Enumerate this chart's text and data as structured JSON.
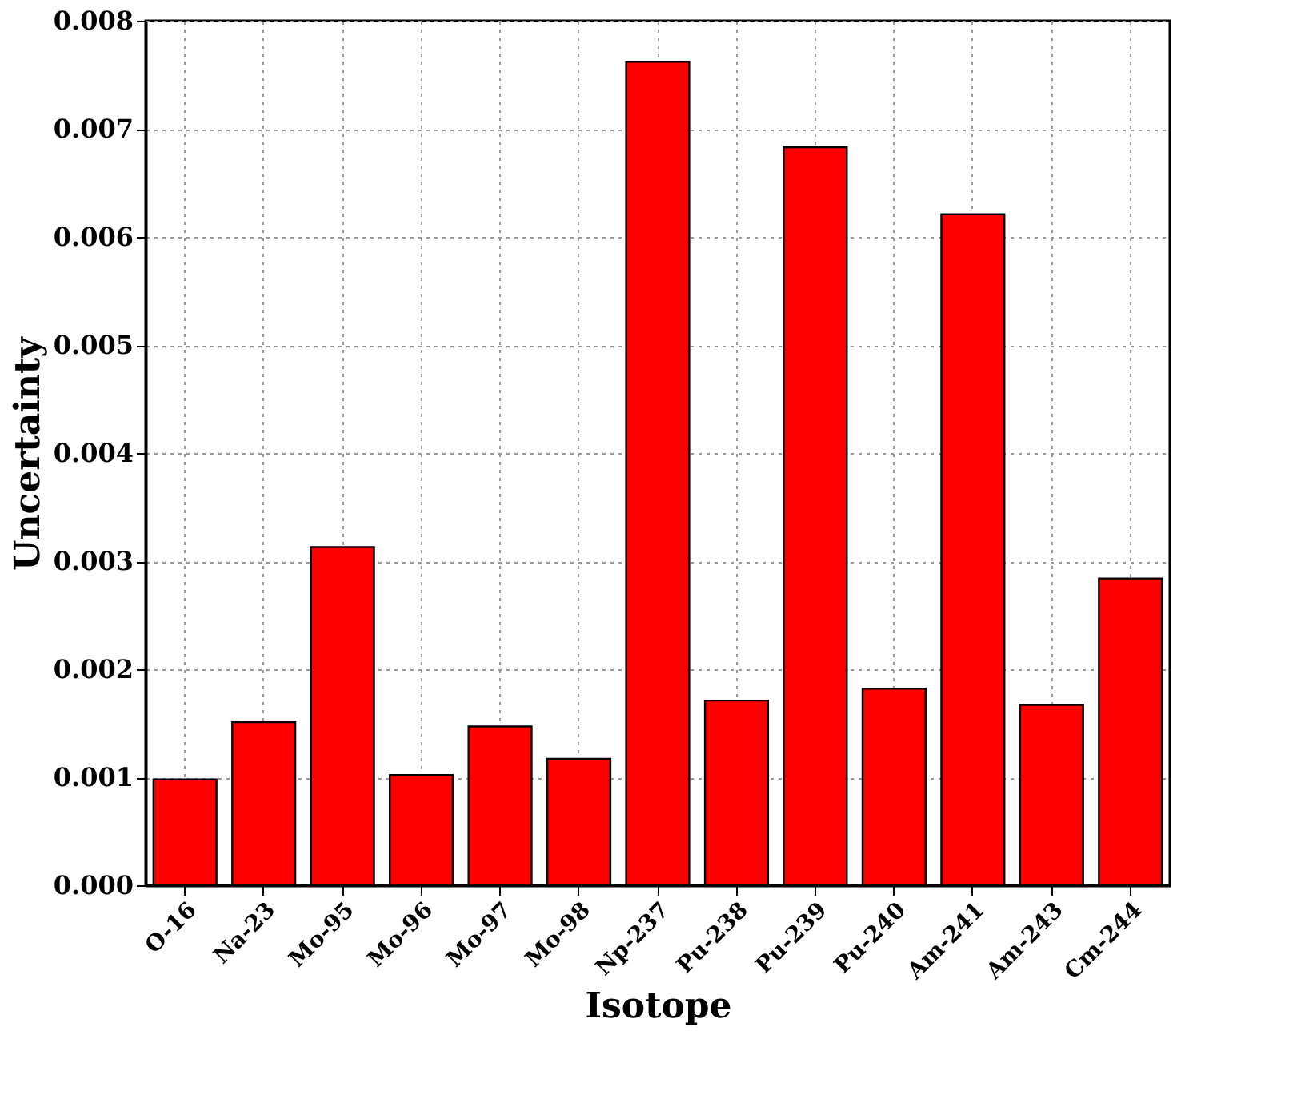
{
  "chart_data": {
    "type": "bar",
    "xlabel": "Isotope",
    "ylabel": "Uncertainty",
    "categories": [
      "O-16",
      "Na-23",
      "Mo-95",
      "Mo-96",
      "Mo-97",
      "Mo-98",
      "Np-237",
      "Pu-238",
      "Pu-239",
      "Pu-240",
      "Am-241",
      "Am-243",
      "Cm-244"
    ],
    "values": [
      0.00098,
      0.00151,
      0.00313,
      0.00102,
      0.00147,
      0.00117,
      0.00762,
      0.00171,
      0.00683,
      0.00182,
      0.00621,
      0.00167,
      0.00284
    ],
    "color": "#ff0000",
    "ylim": [
      0,
      0.008
    ],
    "yticks": [
      {
        "value": 0,
        "label": "0.000"
      },
      0.001,
      0.002,
      0.003,
      0.004,
      0.005,
      0.006,
      0.007,
      0.008
    ],
    "grid": true
  }
}
